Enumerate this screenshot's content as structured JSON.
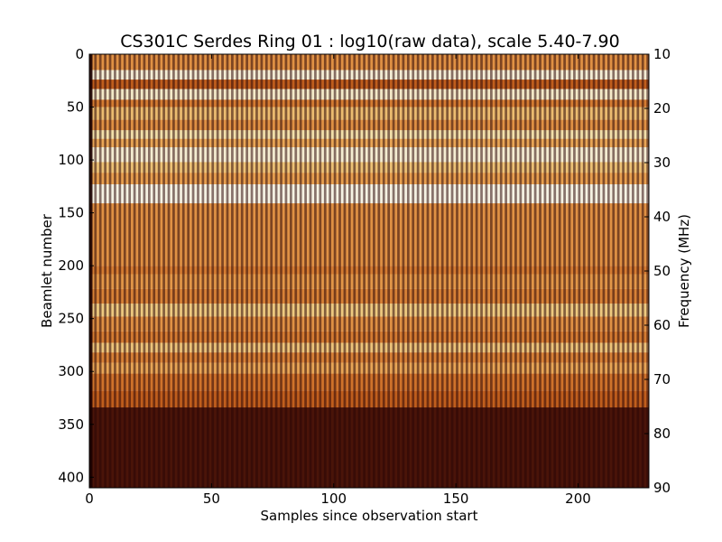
{
  "chart_data": {
    "type": "heatmap",
    "title": "CS301C Serdes Ring 01 : log10(raw data), scale 5.40-7.90",
    "xlabel": "Samples since observation start",
    "ylabel": "Beamlet number",
    "y2label": "Frequency (MHz)",
    "xlim": [
      0,
      229
    ],
    "ylim": [
      0,
      410
    ],
    "y_inverted": true,
    "y2lim": [
      10,
      90
    ],
    "xticks": [
      0,
      50,
      100,
      150,
      200
    ],
    "yticks": [
      0,
      50,
      100,
      150,
      200,
      250,
      300,
      350,
      400
    ],
    "y2ticks": [
      10,
      20,
      30,
      40,
      50,
      60,
      70,
      80,
      90
    ],
    "color_scale": [
      5.4,
      7.9
    ],
    "colormap": [
      "#2a0505",
      "#7a2a10",
      "#c8641e",
      "#e8a050",
      "#f0d890",
      "#f6f4e8"
    ],
    "column_pattern": "alternating-dark-light",
    "bands": [
      {
        "from": 0,
        "to": 15,
        "level": 0.55
      },
      {
        "from": 15,
        "to": 24,
        "level": 0.96
      },
      {
        "from": 24,
        "to": 33,
        "level": 0.38
      },
      {
        "from": 33,
        "to": 43,
        "level": 0.93
      },
      {
        "from": 43,
        "to": 50,
        "level": 0.48
      },
      {
        "from": 50,
        "to": 62,
        "level": 0.7
      },
      {
        "from": 62,
        "to": 72,
        "level": 0.55
      },
      {
        "from": 72,
        "to": 80,
        "level": 0.86
      },
      {
        "from": 80,
        "to": 88,
        "level": 0.62
      },
      {
        "from": 88,
        "to": 102,
        "level": 0.95
      },
      {
        "from": 102,
        "to": 112,
        "level": 0.72
      },
      {
        "from": 112,
        "to": 123,
        "level": 0.6
      },
      {
        "from": 123,
        "to": 141,
        "level": 0.99
      },
      {
        "from": 141,
        "to": 200,
        "level": 0.55
      },
      {
        "from": 200,
        "to": 208,
        "level": 0.48
      },
      {
        "from": 208,
        "to": 222,
        "level": 0.57
      },
      {
        "from": 222,
        "to": 236,
        "level": 0.5
      },
      {
        "from": 236,
        "to": 248,
        "level": 0.75
      },
      {
        "from": 248,
        "to": 262,
        "level": 0.55
      },
      {
        "from": 262,
        "to": 273,
        "level": 0.48
      },
      {
        "from": 273,
        "to": 282,
        "level": 0.73
      },
      {
        "from": 282,
        "to": 292,
        "level": 0.5
      },
      {
        "from": 292,
        "to": 302,
        "level": 0.62
      },
      {
        "from": 302,
        "to": 318,
        "level": 0.45
      },
      {
        "from": 318,
        "to": 334,
        "level": 0.38
      },
      {
        "from": 334,
        "to": 410,
        "level": 0.08
      }
    ]
  }
}
